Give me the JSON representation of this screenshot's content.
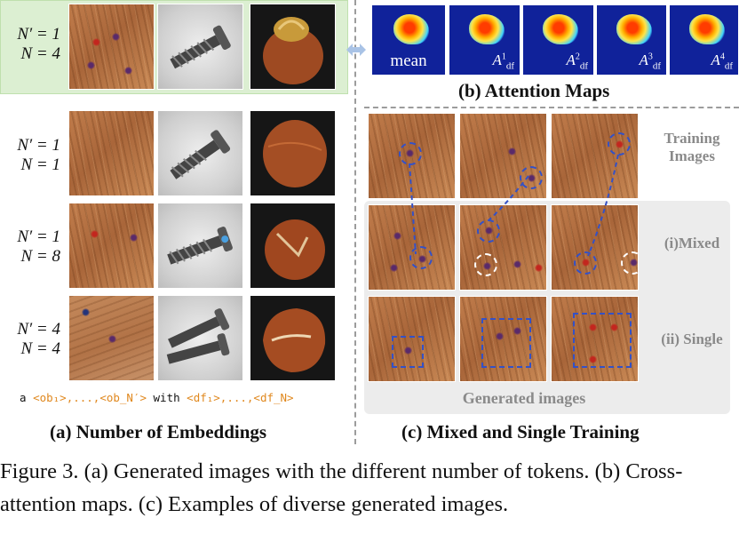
{
  "panel_a": {
    "rows": [
      {
        "n_prime": "N′ = 1",
        "n": "N = 4"
      },
      {
        "n_prime": "N′ = 1",
        "n": "N = 1"
      },
      {
        "n_prime": "N′ = 1",
        "n": "N = 8"
      },
      {
        "n_prime": "N′ = 4",
        "n": "N = 4"
      }
    ],
    "token_prefix": "a",
    "token_ob": "<ob₁>,...,<ob_N′>",
    "token_with": "with",
    "token_df": "<df₁>,...,<df_N>",
    "title": "(a) Number of Embeddings"
  },
  "panel_b": {
    "maps": [
      {
        "label": "mean"
      },
      {
        "label": "A",
        "sup": "1",
        "sub": "df"
      },
      {
        "label": "A",
        "sup": "2",
        "sub": "df"
      },
      {
        "label": "A",
        "sup": "3",
        "sub": "df"
      },
      {
        "label": "A",
        "sup": "4",
        "sub": "df"
      }
    ],
    "title": "(b) Attention Maps"
  },
  "panel_c": {
    "training_label_line1": "Training",
    "training_label_line2": "Images",
    "mixed_label": "(i)Mixed",
    "single_label": "(ii) Single",
    "generated_label": "Generated images",
    "title": "(c) Mixed and Single Training"
  },
  "caption": "Figure 3.   (a) Generated images with the different number of tokens. (b) Cross-attention maps. (c) Examples of diverse generated images.",
  "colors": {
    "highlight_green": "#dcefd2",
    "token_orange": "#e0881e",
    "annotation_blue": "#3451c6",
    "label_gray": "#8a8a8a",
    "attention_bg": "#10229a"
  }
}
